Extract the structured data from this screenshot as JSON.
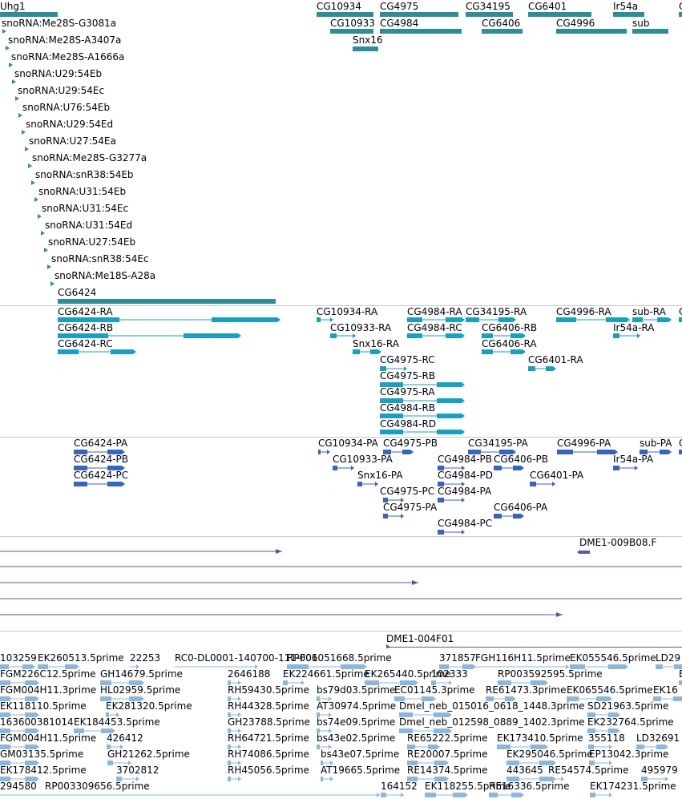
{
  "colors": {
    "gene": "#2a8f97",
    "transcript": "#13a1c5",
    "protein": "#3565c4",
    "clone": "#6b4f9e",
    "est": "#8ab8dc",
    "separator": "#c8c8c8"
  },
  "tracks": [
    {
      "name": "genes",
      "color": "#2a8f97",
      "features": [
        {
          "label": "Uhg1"
        },
        {
          "label": "CG10934"
        },
        {
          "label": "CG4975"
        },
        {
          "label": "CG34195"
        },
        {
          "label": "CG6401"
        },
        {
          "label": "Ir54a"
        },
        {
          "label": "C"
        },
        {
          "label": "CG10933"
        },
        {
          "label": "CG4984"
        },
        {
          "label": "CG6406"
        },
        {
          "label": "CG4996"
        },
        {
          "label": "sub"
        },
        {
          "label": "Snx16"
        },
        {
          "label": "snoRNA:Me28S-G3081a"
        },
        {
          "label": "snoRNA:Me28S-A3407a"
        },
        {
          "label": "snoRNA:Me28S-A1666a"
        },
        {
          "label": "snoRNA:U29:54Eb"
        },
        {
          "label": "snoRNA:U29:54Ec"
        },
        {
          "label": "snoRNA:U76:54Eb"
        },
        {
          "label": "snoRNA:U29:54Ed"
        },
        {
          "label": "snoRNA:U27:54Ea"
        },
        {
          "label": "snoRNA:Me28S-G3277a"
        },
        {
          "label": "snoRNA:snR38:54Eb"
        },
        {
          "label": "snoRNA:U31:54Eb"
        },
        {
          "label": "snoRNA:U31:54Ec"
        },
        {
          "label": "snoRNA:U31:54Ed"
        },
        {
          "label": "snoRNA:U27:54Eb"
        },
        {
          "label": "snoRNA:snR38:54Ec"
        },
        {
          "label": "snoRNA:Me18S-A28a"
        },
        {
          "label": "CG6424"
        }
      ]
    },
    {
      "name": "transcripts",
      "color": "#13a1c5",
      "features": [
        {
          "label": "CG6424-RA"
        },
        {
          "label": "CG10934-RA"
        },
        {
          "label": "CG4984-RA"
        },
        {
          "label": "CG34195-RA"
        },
        {
          "label": "CG4996-RA"
        },
        {
          "label": "sub-RA"
        },
        {
          "label": "C"
        },
        {
          "label": "CG6424-RB"
        },
        {
          "label": "CG10933-RA"
        },
        {
          "label": "CG4984-RC"
        },
        {
          "label": "CG6406-RB"
        },
        {
          "label": "Ir54a-RA"
        },
        {
          "label": "CG6424-RC"
        },
        {
          "label": "Snx16-RA"
        },
        {
          "label": "CG6406-RA"
        },
        {
          "label": "CG4975-RC"
        },
        {
          "label": "CG6401-RA"
        },
        {
          "label": "CG4975-RB"
        },
        {
          "label": "CG4975-RA"
        },
        {
          "label": "CG4984-RB"
        },
        {
          "label": "CG4984-RD"
        }
      ]
    },
    {
      "name": "proteins",
      "color": "#3565c4",
      "features": [
        {
          "label": "CG6424-PA"
        },
        {
          "label": "CG10934-PA"
        },
        {
          "label": "CG4975-PB"
        },
        {
          "label": "CG34195-PA"
        },
        {
          "label": "CG4996-PA"
        },
        {
          "label": "sub-PA"
        },
        {
          "label": "C"
        },
        {
          "label": "CG6424-PB"
        },
        {
          "label": "CG10933-PA"
        },
        {
          "label": "CG4984-PB"
        },
        {
          "label": "CG6406-PB"
        },
        {
          "label": "Ir54a-PA"
        },
        {
          "label": "CG6424-PC"
        },
        {
          "label": "Snx16-PA"
        },
        {
          "label": "CG4984-PD"
        },
        {
          "label": "CG6401-PA"
        },
        {
          "label": "CG4975-PC"
        },
        {
          "label": "CG4984-PA"
        },
        {
          "label": "CG4975-PA"
        },
        {
          "label": "CG6406-PA"
        },
        {
          "label": "CG4984-PC"
        }
      ]
    },
    {
      "name": "clones",
      "color": "#6b4f9e",
      "features": [
        {
          "label": "DME1-009B08.F"
        },
        {
          "label": "DME1-004F01"
        }
      ]
    },
    {
      "name": "ests",
      "color": "#8ab8dc",
      "features": [
        {
          "label": "103259"
        },
        {
          "label": "EK260513.5prime"
        },
        {
          "label": "22253"
        },
        {
          "label": "RC0-DL0001-140700-111-F06"
        },
        {
          "label": "RP001051668.5prime"
        },
        {
          "label": "371857"
        },
        {
          "label": "FGH116H11.5prime"
        },
        {
          "label": "EK055546.5prime"
        },
        {
          "label": "LD29"
        },
        {
          "label": "FGM226C12.5prime"
        },
        {
          "label": "GH14679.5prime"
        },
        {
          "label": "2646188"
        },
        {
          "label": "EK224661.5prime"
        },
        {
          "label": "EK265440.5prime"
        },
        {
          "label": "102333"
        },
        {
          "label": "RP003592595.5prime"
        },
        {
          "label": "E"
        },
        {
          "label": "FGM004H11.3prime"
        },
        {
          "label": "HL02959.5prime"
        },
        {
          "label": "RH59430.5prime"
        },
        {
          "label": "bs79d03.5prime"
        },
        {
          "label": "EC01145.3prime"
        },
        {
          "label": "RE61473.3prime"
        },
        {
          "label": "EK065546.5prime"
        },
        {
          "label": "EK16"
        },
        {
          "label": "EK118110.5prime"
        },
        {
          "label": "EK281320.5prime"
        },
        {
          "label": "RH44328.5prime"
        },
        {
          "label": "AT30974.5prime"
        },
        {
          "label": "Dmel_neb_015016_0618_1448.3prime"
        },
        {
          "label": "SD21963.5prime"
        },
        {
          "label": "163600381014"
        },
        {
          "label": "EK184453.5prime"
        },
        {
          "label": "GH23788.5prime"
        },
        {
          "label": "bs74e09.5prime"
        },
        {
          "label": "Dmel_neb_012598_0889_1402.3prime"
        },
        {
          "label": "EK232764.5prime"
        },
        {
          "label": "FGM004H11.5prime"
        },
        {
          "label": "426412"
        },
        {
          "label": "RH64721.5prime"
        },
        {
          "label": "bs43e02.5prime"
        },
        {
          "label": "RE65222.5prime"
        },
        {
          "label": "EK173410.5prime"
        },
        {
          "label": "355118"
        },
        {
          "label": "LD32691"
        },
        {
          "label": "GM03135.5prime"
        },
        {
          "label": "GH21262.5prime"
        },
        {
          "label": "RH74086.5prime"
        },
        {
          "label": "bs43e07.5prime"
        },
        {
          "label": "RE20007.5prime"
        },
        {
          "label": "EK295046.5prime"
        },
        {
          "label": "EP13042.3prime"
        },
        {
          "label": "EK178412.5prime"
        },
        {
          "label": "3702812"
        },
        {
          "label": "RH45056.5prime"
        },
        {
          "label": "AT19665.5prime"
        },
        {
          "label": "RE14374.5prime"
        },
        {
          "label": "443645"
        },
        {
          "label": "RE54574.5prime"
        },
        {
          "label": "495979"
        },
        {
          "label": "294580"
        },
        {
          "label": "RP003309656.5prime"
        },
        {
          "label": "164152"
        },
        {
          "label": "EK118255.5prime"
        },
        {
          "label": "RE16336.5prime"
        },
        {
          "label": "EK174231.5prime"
        }
      ]
    }
  ]
}
